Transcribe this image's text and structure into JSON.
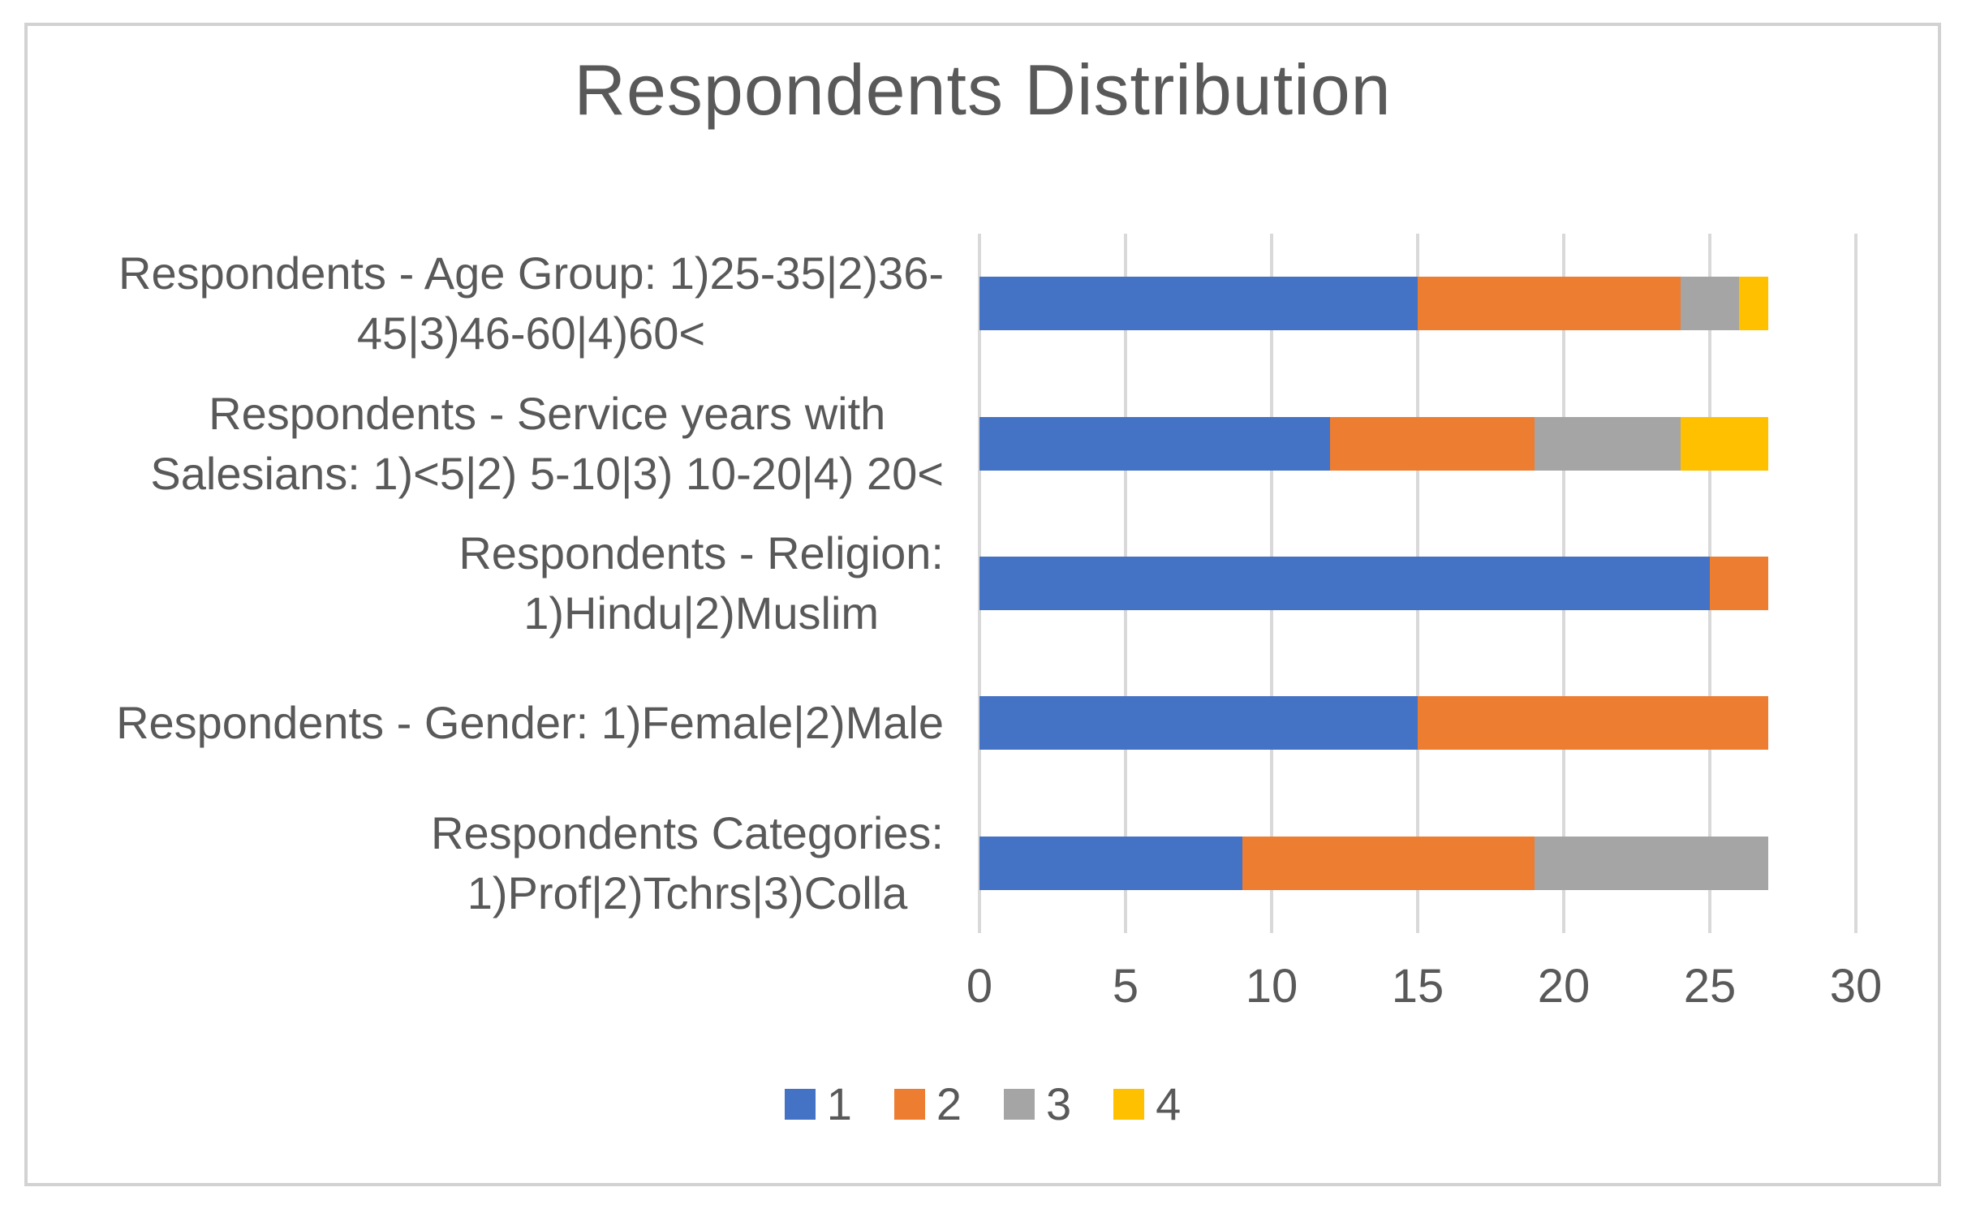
{
  "title": "Respondents Distribution",
  "x_axis": {
    "ticks": [
      0,
      5,
      10,
      15,
      20,
      25,
      30
    ]
  },
  "legend": {
    "items": [
      {
        "label": "1",
        "color": "#4472C4"
      },
      {
        "label": "2",
        "color": "#ED7D31"
      },
      {
        "label": "3",
        "color": "#A5A5A5"
      },
      {
        "label": "4",
        "color": "#FFC000"
      }
    ]
  },
  "categories_display": [
    {
      "lines": [
        "Respondents - Age Group: 1)25-35|2)36-",
        "45|3)46-60|4)60<"
      ]
    },
    {
      "lines": [
        "Respondents - Service years with",
        "Salesians: 1)<5|2) 5-10|3) 10-20|4) 20<"
      ]
    },
    {
      "lines": [
        "Respondents - Religion:",
        "1)Hindu|2)Muslim"
      ]
    },
    {
      "lines": [
        "Respondents - Gender: 1)Female|2)Male"
      ]
    },
    {
      "lines": [
        "Respondents Categories:",
        "1)Prof|2)Tchrs|3)Colla"
      ]
    }
  ],
  "chart_data": {
    "type": "bar",
    "orientation": "horizontal",
    "stacked": true,
    "title": "Respondents Distribution",
    "categories": [
      "Respondents - Age Group: 1)25-35|2)36-45|3)46-60|4)60<",
      "Respondents - Service years with Salesians: 1)<5|2) 5-10|3) 10-20|4) 20<",
      "Respondents - Religion: 1)Hindu|2)Muslim",
      "Respondents - Gender: 1)Female|2)Male",
      "Respondents Categories: 1)Prof|2)Tchrs|3)Colla"
    ],
    "series": [
      {
        "name": "1",
        "color": "#4472C4",
        "values": [
          15,
          12,
          25,
          15,
          9
        ]
      },
      {
        "name": "2",
        "color": "#ED7D31",
        "values": [
          9,
          7,
          2,
          12,
          10
        ]
      },
      {
        "name": "3",
        "color": "#A5A5A5",
        "values": [
          2,
          5,
          0,
          0,
          8
        ]
      },
      {
        "name": "4",
        "color": "#FFC000",
        "values": [
          1,
          3,
          0,
          0,
          0
        ]
      }
    ],
    "category_totals": [
      27,
      27,
      27,
      27,
      27
    ],
    "xlim": [
      0,
      30
    ],
    "x_tick_step": 5,
    "grid": "vertical-gridlines",
    "legend_position": "bottom",
    "colors": {
      "axis_text": "#595959",
      "gridline": "#D9D9D9",
      "frame_border": "#D2D2D2",
      "background": "#FFFFFF"
    }
  }
}
